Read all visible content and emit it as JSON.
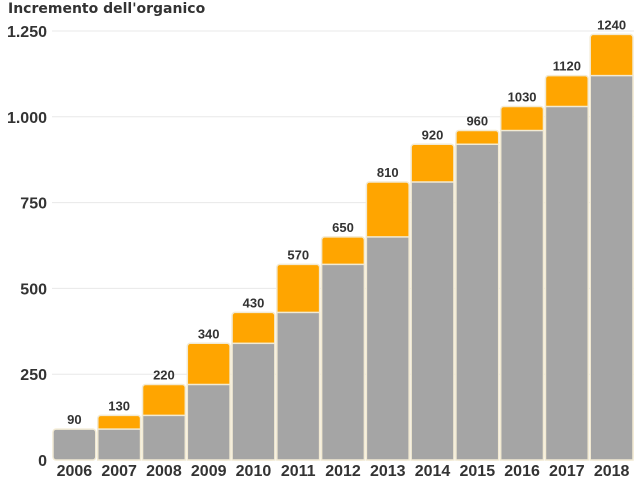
{
  "chart_data": {
    "type": "bar",
    "title": "Incremento dell'organico",
    "xlabel": "",
    "ylabel": "",
    "categories": [
      "2006",
      "2007",
      "2008",
      "2009",
      "2010",
      "2011",
      "2012",
      "2013",
      "2014",
      "2015",
      "2016",
      "2017",
      "2018"
    ],
    "values": [
      90,
      130,
      220,
      340,
      430,
      570,
      650,
      810,
      920,
      960,
      1030,
      1120,
      1240
    ],
    "series": [
      {
        "values": [
          90,
          90,
          130,
          220,
          340,
          430,
          570,
          650,
          810,
          920,
          960,
          1030,
          1120
        ]
      },
      {
        "values": [
          0,
          40,
          90,
          120,
          90,
          140,
          80,
          160,
          110,
          40,
          70,
          90,
          120
        ]
      }
    ],
    "data_labels": [
      "90",
      "130",
      "220",
      "340",
      "430",
      "570",
      "650",
      "810",
      "920",
      "960",
      "1030",
      "1120",
      "1240"
    ],
    "ylim": [
      0,
      1250
    ],
    "yticks": [
      0,
      250,
      500,
      750,
      1000,
      1250
    ],
    "ytick_labels": [
      "0",
      "250",
      "500",
      "750",
      "1.000",
      "1.250"
    ],
    "grid": true,
    "stacked": true,
    "colors": {
      "base": "#a5a5a5",
      "increment": "#ffa500",
      "bar_border": "#f2ead3",
      "grid": "#e8e8e8",
      "text": "#333333"
    }
  }
}
